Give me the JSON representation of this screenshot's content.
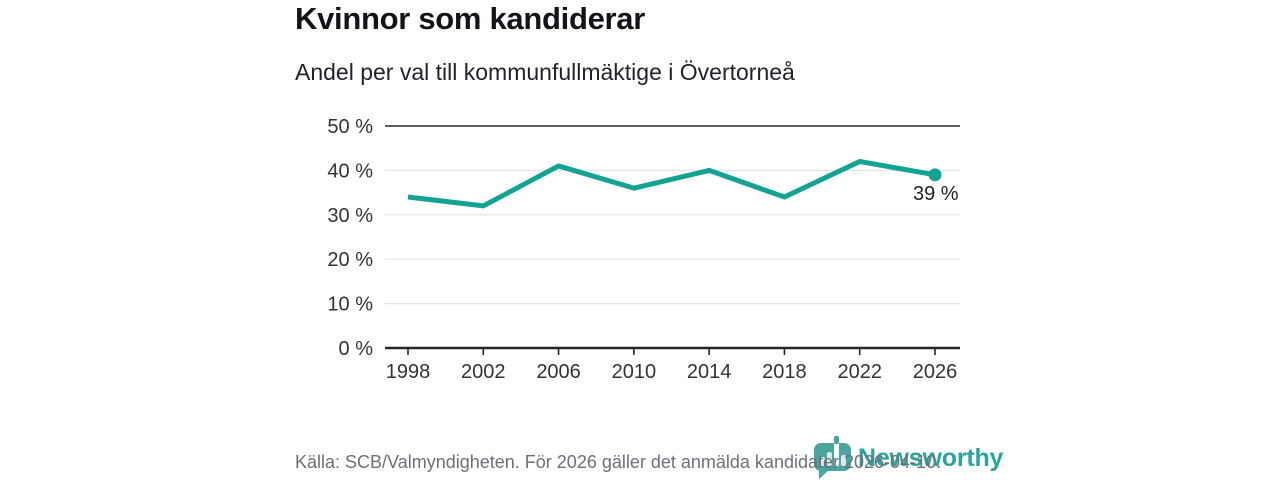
{
  "chart_data": {
    "type": "line",
    "title": "Kvinnor som kandiderar",
    "subtitle": "Andel per val till kommunfullmäktige i Övertorneå",
    "categories": [
      "1998",
      "2002",
      "2006",
      "2010",
      "2014",
      "2018",
      "2022",
      "2026"
    ],
    "values": [
      34,
      32,
      41,
      36,
      40,
      34,
      42,
      39
    ],
    "unit": "%",
    "ylim": [
      0,
      50
    ],
    "yticks": [
      0,
      10,
      20,
      30,
      40,
      50
    ],
    "ytick_labels": [
      "0 %",
      "10 %",
      "20 %",
      "30 %",
      "40 %",
      "50 %"
    ],
    "grid": "horizontal",
    "legend": "none",
    "line_color": "#12a392",
    "axis_color": "#262626",
    "gridline_color": "#e4e4e4",
    "top_rule_color": "#4a4a4a",
    "tick_label_color": "#333333",
    "annotation": {
      "label": "39 %",
      "x": "2026",
      "y": 39
    }
  },
  "footer": {
    "source": "Källa: SCB/Valmyndigheten. För 2026 gäller det anmälda kandidater 2026-04-10."
  },
  "logo": {
    "name": "Newsworthy",
    "icon": "bar-chart-speech-bubble-icon",
    "color": "#2ca49e"
  }
}
